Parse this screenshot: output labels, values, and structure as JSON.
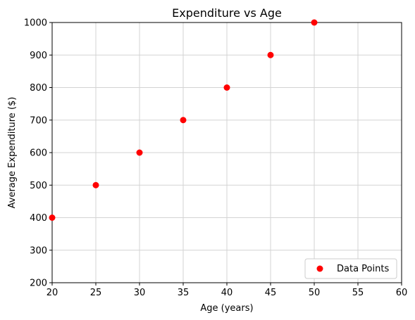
{
  "chart_data": {
    "type": "scatter",
    "title": "Expenditure vs Age",
    "xlabel": "Age (years)",
    "ylabel": "Average Expenditure ($)",
    "xlim": [
      20,
      60
    ],
    "ylim": [
      200,
      1000
    ],
    "xticks": [
      20,
      25,
      30,
      35,
      40,
      45,
      50,
      55,
      60
    ],
    "yticks": [
      200,
      300,
      400,
      500,
      600,
      700,
      800,
      900,
      1000
    ],
    "grid": true,
    "legend_position": "lower-right",
    "series": [
      {
        "name": "Data Points",
        "color": "#ff0000",
        "x": [
          20,
          25,
          30,
          35,
          40,
          45,
          50
        ],
        "y": [
          400,
          500,
          600,
          700,
          800,
          900,
          1000
        ]
      }
    ]
  }
}
